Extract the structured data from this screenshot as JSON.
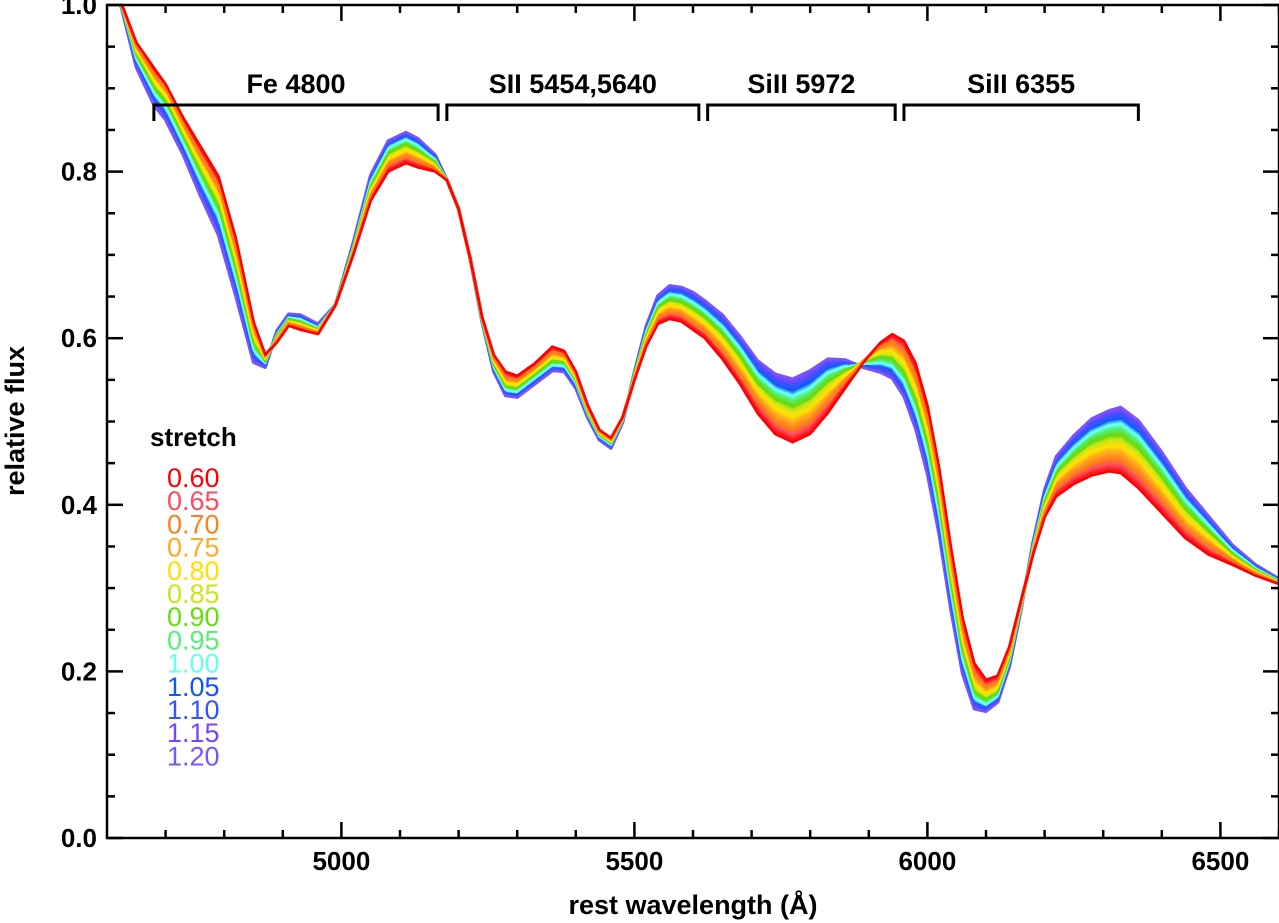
{
  "chart_data": {
    "type": "line",
    "xlabel": "rest wavelength (Å)",
    "ylabel": "relative flux",
    "xlim": [
      4600,
      6600
    ],
    "ylim": [
      0.0,
      1.0
    ],
    "x_ticks": [
      5000,
      5500,
      6000,
      6500
    ],
    "x_tick_labels": [
      "5000",
      "5500",
      "6000",
      "6500"
    ],
    "y_ticks": [
      0.0,
      0.2,
      0.4,
      0.6,
      0.8,
      1.0
    ],
    "y_tick_labels": [
      "0.0",
      "0.2",
      "0.4",
      "0.6",
      "0.8",
      "1.0"
    ],
    "features": [
      {
        "label": "Fe 4800",
        "x_start": 4680,
        "x_end": 5165,
        "level": 0.88
      },
      {
        "label": "SII 5454,5640",
        "x_start": 5180,
        "x_end": 5610,
        "level": 0.88
      },
      {
        "label": "SiII 5972",
        "x_start": 5625,
        "x_end": 5945,
        "level": 0.88
      },
      {
        "label": "SiII 6355",
        "x_start": 5960,
        "x_end": 6360,
        "level": 0.88
      }
    ],
    "legend": {
      "title": "stretch",
      "placement": "middle-left",
      "entries": [
        {
          "label": "0.60",
          "color": "#ff0000"
        },
        {
          "label": "0.65",
          "color": "#ff4a5c"
        },
        {
          "label": "0.70",
          "color": "#ff7f1a"
        },
        {
          "label": "0.75",
          "color": "#ffaa22"
        },
        {
          "label": "0.80",
          "color": "#ffe000"
        },
        {
          "label": "0.85",
          "color": "#c8e61a"
        },
        {
          "label": "0.90",
          "color": "#66dd11"
        },
        {
          "label": "0.95",
          "color": "#55ee77"
        },
        {
          "label": "1.00",
          "color": "#66ffee"
        },
        {
          "label": "1.05",
          "color": "#1155ff"
        },
        {
          "label": "1.10",
          "color": "#3355ff"
        },
        {
          "label": "1.15",
          "color": "#7744ff"
        },
        {
          "label": "1.20",
          "color": "#7755ff"
        }
      ]
    },
    "x": [
      4620,
      4650,
      4680,
      4700,
      4730,
      4760,
      4790,
      4820,
      4850,
      4870,
      4890,
      4910,
      4930,
      4960,
      4990,
      5020,
      5050,
      5080,
      5110,
      5130,
      5160,
      5180,
      5200,
      5220,
      5240,
      5260,
      5280,
      5300,
      5330,
      5360,
      5380,
      5400,
      5420,
      5440,
      5460,
      5480,
      5500,
      5520,
      5540,
      5560,
      5580,
      5600,
      5620,
      5650,
      5680,
      5710,
      5740,
      5770,
      5800,
      5830,
      5860,
      5890,
      5920,
      5940,
      5960,
      5980,
      6000,
      6020,
      6040,
      6060,
      6080,
      6100,
      6120,
      6140,
      6160,
      6180,
      6200,
      6220,
      6250,
      6280,
      6310,
      6330,
      6360,
      6400,
      6440,
      6480,
      6520,
      6560,
      6600
    ],
    "series": [
      {
        "name": "0.60",
        "values": [
          1.01,
          0.955,
          0.925,
          0.905,
          0.865,
          0.83,
          0.795,
          0.72,
          0.62,
          0.58,
          0.595,
          0.615,
          0.61,
          0.605,
          0.64,
          0.7,
          0.765,
          0.8,
          0.81,
          0.805,
          0.8,
          0.79,
          0.755,
          0.695,
          0.625,
          0.58,
          0.56,
          0.555,
          0.57,
          0.59,
          0.585,
          0.56,
          0.52,
          0.49,
          0.48,
          0.505,
          0.55,
          0.59,
          0.617,
          0.623,
          0.62,
          0.61,
          0.6,
          0.575,
          0.545,
          0.51,
          0.485,
          0.475,
          0.485,
          0.51,
          0.54,
          0.57,
          0.595,
          0.605,
          0.597,
          0.57,
          0.52,
          0.445,
          0.35,
          0.265,
          0.21,
          0.19,
          0.195,
          0.23,
          0.285,
          0.34,
          0.385,
          0.41,
          0.425,
          0.435,
          0.44,
          0.438,
          0.42,
          0.39,
          0.36,
          0.34,
          0.328,
          0.315,
          0.305
        ]
      },
      {
        "name": "0.70",
        "values": [
          1.01,
          0.95,
          0.918,
          0.9,
          0.858,
          0.82,
          0.784,
          0.708,
          0.612,
          0.578,
          0.598,
          0.618,
          0.614,
          0.607,
          0.64,
          0.702,
          0.772,
          0.808,
          0.818,
          0.812,
          0.804,
          0.79,
          0.755,
          0.695,
          0.624,
          0.576,
          0.553,
          0.55,
          0.565,
          0.584,
          0.58,
          0.556,
          0.517,
          0.488,
          0.478,
          0.504,
          0.552,
          0.595,
          0.624,
          0.631,
          0.628,
          0.618,
          0.608,
          0.585,
          0.556,
          0.523,
          0.5,
          0.49,
          0.5,
          0.523,
          0.548,
          0.572,
          0.59,
          0.596,
          0.585,
          0.556,
          0.505,
          0.43,
          0.335,
          0.25,
          0.198,
          0.182,
          0.188,
          0.225,
          0.283,
          0.343,
          0.392,
          0.42,
          0.437,
          0.449,
          0.455,
          0.454,
          0.437,
          0.405,
          0.372,
          0.35,
          0.333,
          0.318,
          0.306
        ]
      },
      {
        "name": "0.80",
        "values": [
          1.01,
          0.945,
          0.91,
          0.893,
          0.85,
          0.81,
          0.772,
          0.695,
          0.603,
          0.575,
          0.6,
          0.62,
          0.617,
          0.609,
          0.64,
          0.705,
          0.778,
          0.815,
          0.825,
          0.819,
          0.808,
          0.79,
          0.755,
          0.695,
          0.623,
          0.572,
          0.547,
          0.545,
          0.56,
          0.578,
          0.575,
          0.552,
          0.514,
          0.486,
          0.476,
          0.503,
          0.554,
          0.6,
          0.631,
          0.639,
          0.636,
          0.627,
          0.617,
          0.596,
          0.568,
          0.536,
          0.515,
          0.505,
          0.515,
          0.536,
          0.555,
          0.572,
          0.585,
          0.585,
          0.572,
          0.541,
          0.49,
          0.415,
          0.32,
          0.236,
          0.186,
          0.174,
          0.181,
          0.22,
          0.281,
          0.346,
          0.398,
          0.43,
          0.449,
          0.463,
          0.47,
          0.47,
          0.454,
          0.42,
          0.384,
          0.36,
          0.338,
          0.32,
          0.307
        ]
      },
      {
        "name": "0.90",
        "values": [
          1.01,
          0.94,
          0.902,
          0.885,
          0.842,
          0.8,
          0.76,
          0.683,
          0.594,
          0.572,
          0.603,
          0.623,
          0.62,
          0.611,
          0.64,
          0.708,
          0.783,
          0.822,
          0.832,
          0.825,
          0.812,
          0.79,
          0.755,
          0.695,
          0.622,
          0.568,
          0.542,
          0.54,
          0.556,
          0.573,
          0.571,
          0.549,
          0.511,
          0.484,
          0.474,
          0.502,
          0.556,
          0.604,
          0.637,
          0.646,
          0.643,
          0.635,
          0.625,
          0.605,
          0.578,
          0.546,
          0.527,
          0.518,
          0.528,
          0.548,
          0.561,
          0.571,
          0.578,
          0.576,
          0.56,
          0.527,
          0.475,
          0.4,
          0.307,
          0.224,
          0.176,
          0.167,
          0.175,
          0.216,
          0.279,
          0.348,
          0.404,
          0.438,
          0.459,
          0.475,
          0.483,
          0.484,
          0.468,
          0.433,
          0.395,
          0.368,
          0.342,
          0.322,
          0.308
        ]
      },
      {
        "name": "1.00",
        "values": [
          1.01,
          0.935,
          0.895,
          0.878,
          0.835,
          0.79,
          0.748,
          0.672,
          0.586,
          0.57,
          0.605,
          0.625,
          0.623,
          0.613,
          0.64,
          0.71,
          0.788,
          0.828,
          0.838,
          0.831,
          0.815,
          0.79,
          0.755,
          0.695,
          0.621,
          0.565,
          0.538,
          0.536,
          0.552,
          0.568,
          0.567,
          0.546,
          0.509,
          0.482,
          0.472,
          0.501,
          0.557,
          0.608,
          0.642,
          0.652,
          0.65,
          0.642,
          0.632,
          0.613,
          0.587,
          0.556,
          0.538,
          0.53,
          0.54,
          0.558,
          0.566,
          0.569,
          0.571,
          0.567,
          0.549,
          0.514,
          0.462,
          0.387,
          0.295,
          0.214,
          0.168,
          0.161,
          0.17,
          0.212,
          0.277,
          0.35,
          0.409,
          0.445,
          0.468,
          0.486,
          0.495,
          0.497,
          0.481,
          0.445,
          0.405,
          0.375,
          0.346,
          0.324,
          0.309
        ]
      },
      {
        "name": "1.10",
        "values": [
          1.01,
          0.93,
          0.888,
          0.87,
          0.827,
          0.78,
          0.736,
          0.66,
          0.578,
          0.567,
          0.607,
          0.627,
          0.626,
          0.615,
          0.64,
          0.712,
          0.792,
          0.833,
          0.843,
          0.836,
          0.818,
          0.79,
          0.755,
          0.695,
          0.62,
          0.562,
          0.534,
          0.532,
          0.548,
          0.564,
          0.563,
          0.543,
          0.507,
          0.48,
          0.47,
          0.5,
          0.558,
          0.611,
          0.647,
          0.658,
          0.656,
          0.649,
          0.639,
          0.621,
          0.595,
          0.565,
          0.548,
          0.541,
          0.551,
          0.567,
          0.57,
          0.567,
          0.565,
          0.559,
          0.539,
          0.502,
          0.449,
          0.375,
          0.284,
          0.205,
          0.161,
          0.156,
          0.166,
          0.209,
          0.276,
          0.352,
          0.414,
          0.452,
          0.476,
          0.495,
          0.505,
          0.508,
          0.492,
          0.455,
          0.413,
          0.381,
          0.349,
          0.326,
          0.31
        ]
      },
      {
        "name": "1.20",
        "values": [
          1.01,
          0.925,
          0.88,
          0.862,
          0.82,
          0.77,
          0.724,
          0.65,
          0.571,
          0.565,
          0.609,
          0.629,
          0.628,
          0.617,
          0.64,
          0.714,
          0.796,
          0.837,
          0.847,
          0.84,
          0.82,
          0.79,
          0.755,
          0.695,
          0.62,
          0.56,
          0.531,
          0.529,
          0.545,
          0.561,
          0.56,
          0.54,
          0.505,
          0.478,
          0.468,
          0.499,
          0.559,
          0.614,
          0.651,
          0.663,
          0.661,
          0.655,
          0.645,
          0.628,
          0.602,
          0.573,
          0.557,
          0.551,
          0.561,
          0.575,
          0.574,
          0.565,
          0.559,
          0.552,
          0.53,
          0.491,
          0.437,
          0.364,
          0.274,
          0.197,
          0.155,
          0.152,
          0.163,
          0.206,
          0.275,
          0.354,
          0.418,
          0.458,
          0.483,
          0.503,
          0.513,
          0.517,
          0.501,
          0.463,
          0.42,
          0.386,
          0.352,
          0.328,
          0.311
        ]
      }
    ]
  }
}
